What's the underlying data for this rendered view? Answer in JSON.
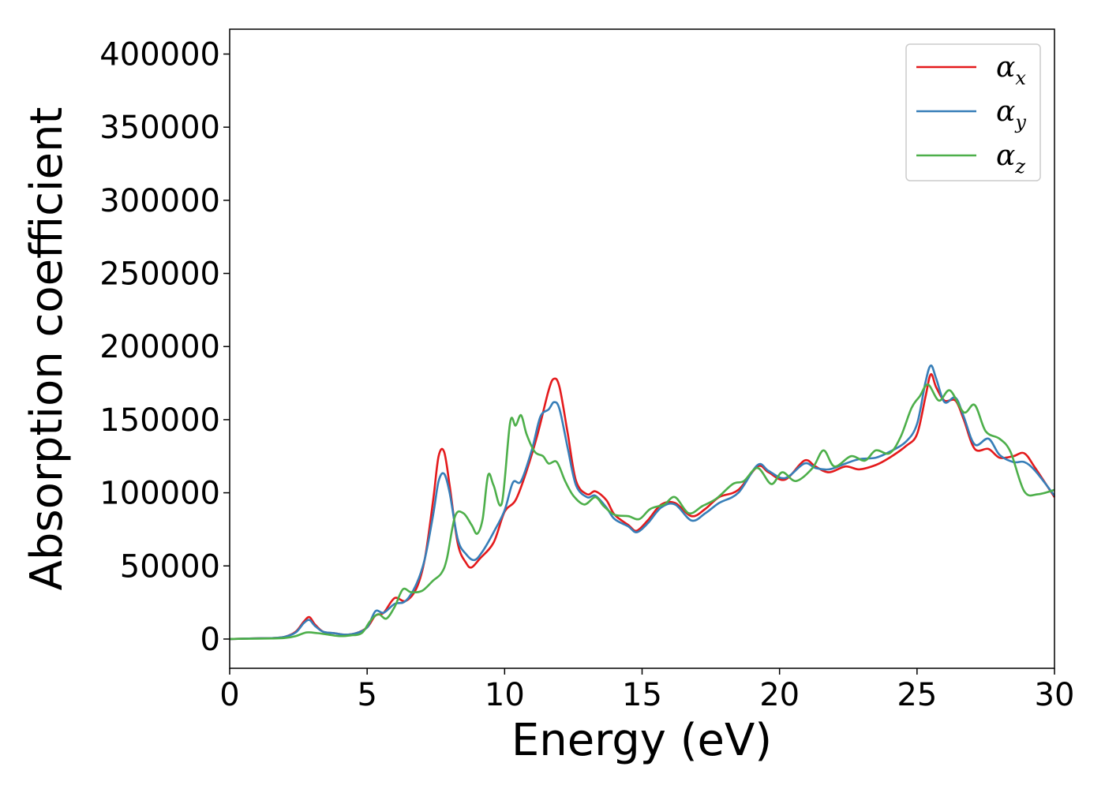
{
  "chart_data": {
    "type": "line",
    "title": "",
    "xlabel": "Energy (eV)",
    "ylabel": "Absorption coefficient",
    "xlim": [
      0,
      30
    ],
    "ylim": [
      -20000,
      417000
    ],
    "xticks": [
      0,
      5,
      10,
      15,
      20,
      25,
      30
    ],
    "yticks": [
      0,
      50000,
      100000,
      150000,
      200000,
      250000,
      300000,
      350000,
      400000
    ],
    "grid": false,
    "legend_position": "top-right",
    "series": [
      {
        "name": "α",
        "subscript": "x",
        "color": "#e41a1c",
        "points": [
          [
            0,
            0
          ],
          [
            0.5,
            300
          ],
          [
            1,
            500
          ],
          [
            1.5,
            600
          ],
          [
            2,
            1500
          ],
          [
            2.4,
            5000
          ],
          [
            2.7,
            12000
          ],
          [
            2.9,
            15000
          ],
          [
            3.1,
            10000
          ],
          [
            3.4,
            5000
          ],
          [
            3.8,
            4000
          ],
          [
            4.2,
            3000
          ],
          [
            4.6,
            4000
          ],
          [
            5,
            8000
          ],
          [
            5.3,
            16000
          ],
          [
            5.6,
            18000
          ],
          [
            6,
            28000
          ],
          [
            6.4,
            26000
          ],
          [
            6.8,
            35000
          ],
          [
            7.1,
            55000
          ],
          [
            7.4,
            95000
          ],
          [
            7.6,
            125000
          ],
          [
            7.8,
            128000
          ],
          [
            8,
            105000
          ],
          [
            8.3,
            65000
          ],
          [
            8.6,
            52000
          ],
          [
            8.8,
            49000
          ],
          [
            9.1,
            55000
          ],
          [
            9.6,
            66000
          ],
          [
            10,
            87000
          ],
          [
            10.4,
            95000
          ],
          [
            10.8,
            115000
          ],
          [
            11.2,
            140000
          ],
          [
            11.6,
            170000
          ],
          [
            11.8,
            178000
          ],
          [
            12,
            172000
          ],
          [
            12.3,
            140000
          ],
          [
            12.6,
            108000
          ],
          [
            13,
            99000
          ],
          [
            13.3,
            101000
          ],
          [
            13.7,
            95000
          ],
          [
            14,
            85000
          ],
          [
            14.5,
            78000
          ],
          [
            14.8,
            74000
          ],
          [
            15.2,
            81000
          ],
          [
            15.7,
            92000
          ],
          [
            16.2,
            93000
          ],
          [
            16.8,
            84000
          ],
          [
            17.3,
            89000
          ],
          [
            17.8,
            97000
          ],
          [
            18.5,
            102000
          ],
          [
            19.2,
            118000
          ],
          [
            19.6,
            114000
          ],
          [
            20.2,
            109000
          ],
          [
            20.9,
            122000
          ],
          [
            21.3,
            118000
          ],
          [
            21.8,
            114000
          ],
          [
            22.4,
            118000
          ],
          [
            22.9,
            116000
          ],
          [
            23.5,
            119000
          ],
          [
            24,
            124000
          ],
          [
            24.6,
            132000
          ],
          [
            25,
            140000
          ],
          [
            25.3,
            165000
          ],
          [
            25.5,
            181000
          ],
          [
            25.7,
            172000
          ],
          [
            26,
            163000
          ],
          [
            26.4,
            163000
          ],
          [
            26.7,
            150000
          ],
          [
            27.1,
            130000
          ],
          [
            27.6,
            130000
          ],
          [
            28,
            124000
          ],
          [
            28.5,
            125000
          ],
          [
            28.9,
            127000
          ],
          [
            29.3,
            117000
          ],
          [
            30,
            97000
          ]
        ]
      },
      {
        "name": "α",
        "subscript": "y",
        "color": "#377eb8",
        "points": [
          [
            0,
            0
          ],
          [
            0.5,
            300
          ],
          [
            1,
            500
          ],
          [
            1.5,
            600
          ],
          [
            2,
            1500
          ],
          [
            2.4,
            4500
          ],
          [
            2.7,
            11000
          ],
          [
            2.9,
            13000
          ],
          [
            3.1,
            9000
          ],
          [
            3.4,
            5000
          ],
          [
            3.8,
            4000
          ],
          [
            4.2,
            3000
          ],
          [
            4.6,
            4000
          ],
          [
            5,
            8000
          ],
          [
            5.3,
            19000
          ],
          [
            5.6,
            18000
          ],
          [
            6,
            24000
          ],
          [
            6.4,
            26000
          ],
          [
            6.8,
            38000
          ],
          [
            7.1,
            55000
          ],
          [
            7.4,
            85000
          ],
          [
            7.6,
            108000
          ],
          [
            7.8,
            113000
          ],
          [
            8,
            100000
          ],
          [
            8.3,
            68000
          ],
          [
            8.6,
            58000
          ],
          [
            8.9,
            54000
          ],
          [
            9.2,
            60000
          ],
          [
            9.6,
            73000
          ],
          [
            10,
            88000
          ],
          [
            10.3,
            107000
          ],
          [
            10.6,
            108000
          ],
          [
            11,
            130000
          ],
          [
            11.3,
            152000
          ],
          [
            11.6,
            157000
          ],
          [
            11.8,
            162000
          ],
          [
            12,
            157000
          ],
          [
            12.3,
            130000
          ],
          [
            12.6,
            105000
          ],
          [
            13,
            97000
          ],
          [
            13.3,
            98000
          ],
          [
            13.7,
            90000
          ],
          [
            14,
            82000
          ],
          [
            14.5,
            77000
          ],
          [
            14.8,
            73000
          ],
          [
            15.2,
            79000
          ],
          [
            15.7,
            90000
          ],
          [
            16.2,
            92000
          ],
          [
            16.8,
            81000
          ],
          [
            17.3,
            86000
          ],
          [
            17.8,
            93000
          ],
          [
            18.5,
            100000
          ],
          [
            19.2,
            119000
          ],
          [
            19.6,
            115000
          ],
          [
            20.2,
            110000
          ],
          [
            20.9,
            120000
          ],
          [
            21.3,
            117000
          ],
          [
            21.8,
            116000
          ],
          [
            22.4,
            120000
          ],
          [
            22.9,
            123000
          ],
          [
            23.5,
            124000
          ],
          [
            24,
            128000
          ],
          [
            24.6,
            135000
          ],
          [
            25,
            147000
          ],
          [
            25.3,
            175000
          ],
          [
            25.5,
            187000
          ],
          [
            25.7,
            178000
          ],
          [
            26,
            162000
          ],
          [
            26.4,
            165000
          ],
          [
            26.7,
            152000
          ],
          [
            27.1,
            133000
          ],
          [
            27.6,
            137000
          ],
          [
            28,
            126000
          ],
          [
            28.5,
            121000
          ],
          [
            28.9,
            121000
          ],
          [
            29.3,
            115000
          ],
          [
            30,
            98000
          ]
        ]
      },
      {
        "name": "α",
        "subscript": "z",
        "color": "#4daf4a",
        "points": [
          [
            0,
            0
          ],
          [
            0.5,
            200
          ],
          [
            1,
            300
          ],
          [
            1.5,
            400
          ],
          [
            2,
            700
          ],
          [
            2.4,
            2000
          ],
          [
            2.8,
            4500
          ],
          [
            3.2,
            4000
          ],
          [
            3.6,
            3000
          ],
          [
            4,
            2000
          ],
          [
            4.4,
            2500
          ],
          [
            4.8,
            4000
          ],
          [
            5.1,
            12000
          ],
          [
            5.4,
            17000
          ],
          [
            5.7,
            14000
          ],
          [
            6,
            22000
          ],
          [
            6.3,
            34000
          ],
          [
            6.6,
            32000
          ],
          [
            7,
            33000
          ],
          [
            7.4,
            40000
          ],
          [
            7.7,
            45000
          ],
          [
            7.9,
            55000
          ],
          [
            8.2,
            84000
          ],
          [
            8.5,
            86000
          ],
          [
            8.8,
            78000
          ],
          [
            9,
            72000
          ],
          [
            9.2,
            82000
          ],
          [
            9.4,
            112000
          ],
          [
            9.6,
            105000
          ],
          [
            9.9,
            93000
          ],
          [
            10.2,
            148000
          ],
          [
            10.4,
            146000
          ],
          [
            10.6,
            153000
          ],
          [
            10.8,
            140000
          ],
          [
            11.1,
            128000
          ],
          [
            11.4,
            125000
          ],
          [
            11.6,
            120000
          ],
          [
            11.9,
            121000
          ],
          [
            12.2,
            108000
          ],
          [
            12.5,
            98000
          ],
          [
            12.9,
            92000
          ],
          [
            13.3,
            97000
          ],
          [
            13.6,
            91000
          ],
          [
            14,
            85000
          ],
          [
            14.5,
            84000
          ],
          [
            14.9,
            82000
          ],
          [
            15.3,
            89000
          ],
          [
            15.8,
            92000
          ],
          [
            16.2,
            97000
          ],
          [
            16.7,
            86000
          ],
          [
            17.2,
            91000
          ],
          [
            17.7,
            96000
          ],
          [
            18.3,
            106000
          ],
          [
            18.7,
            108000
          ],
          [
            19.2,
            117000
          ],
          [
            19.7,
            106000
          ],
          [
            20.1,
            114000
          ],
          [
            20.6,
            108000
          ],
          [
            21.2,
            117000
          ],
          [
            21.6,
            129000
          ],
          [
            22,
            118000
          ],
          [
            22.6,
            125000
          ],
          [
            23.1,
            122000
          ],
          [
            23.5,
            129000
          ],
          [
            24,
            127000
          ],
          [
            24.4,
            138000
          ],
          [
            24.8,
            158000
          ],
          [
            25.1,
            166000
          ],
          [
            25.4,
            174000
          ],
          [
            25.8,
            163000
          ],
          [
            26.2,
            170000
          ],
          [
            26.7,
            155000
          ],
          [
            27.1,
            160000
          ],
          [
            27.5,
            142000
          ],
          [
            28,
            137000
          ],
          [
            28.4,
            128000
          ],
          [
            28.9,
            101000
          ],
          [
            29.4,
            99000
          ],
          [
            30,
            102000
          ]
        ]
      }
    ]
  }
}
